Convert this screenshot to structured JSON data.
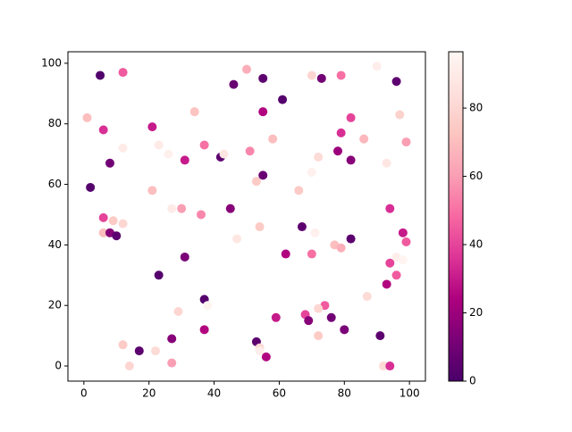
{
  "chart_data": {
    "type": "scatter",
    "colormap": "RdPu_r",
    "x": [
      5,
      12,
      1,
      6,
      8,
      2,
      12,
      21,
      23,
      26,
      31,
      34,
      37,
      42,
      43,
      46,
      50,
      55,
      61,
      55,
      51,
      58,
      53,
      55,
      21,
      27,
      30,
      36,
      45,
      6,
      9,
      12,
      6,
      8,
      10,
      23,
      31,
      47,
      54,
      62,
      66,
      67,
      70,
      72,
      70,
      73,
      79,
      90,
      96,
      82,
      79,
      78,
      82,
      86,
      97,
      99,
      93,
      94,
      98,
      99,
      96,
      98,
      94,
      96,
      93,
      82,
      77,
      79,
      71,
      70,
      87,
      74,
      72,
      68,
      69,
      76,
      80,
      72,
      91,
      92,
      94,
      59,
      53,
      54,
      54,
      56,
      37,
      37,
      29,
      27,
      27,
      22,
      17,
      12,
      14,
      38
    ],
    "y": [
      96,
      97,
      82,
      78,
      67,
      59,
      72,
      79,
      73,
      70,
      68,
      84,
      73,
      69,
      70,
      93,
      98,
      95,
      88,
      84,
      71,
      75,
      61,
      63,
      58,
      52,
      52,
      50,
      52,
      49,
      48,
      47,
      44,
      44,
      43,
      30,
      36,
      42,
      46,
      37,
      58,
      46,
      64,
      69,
      96,
      95,
      96,
      99,
      94,
      82,
      77,
      71,
      68,
      75,
      83,
      74,
      67,
      52,
      44,
      41,
      36,
      35,
      34,
      30,
      27,
      42,
      40,
      39,
      44,
      37,
      23,
      20,
      19,
      17,
      15,
      16,
      12,
      10,
      10,
      0,
      0,
      16,
      8,
      6,
      5,
      3,
      22,
      12,
      18,
      9,
      1,
      5,
      5,
      7,
      0,
      20
    ],
    "c": [
      2,
      45,
      70,
      35,
      10,
      3,
      90,
      30,
      90,
      93,
      30,
      72,
      50,
      5,
      88,
      8,
      65,
      5,
      3,
      25,
      55,
      70,
      75,
      8,
      70,
      90,
      60,
      55,
      15,
      40,
      75,
      80,
      70,
      15,
      5,
      3,
      12,
      88,
      75,
      25,
      75,
      5,
      93,
      82,
      80,
      10,
      50,
      92,
      5,
      40,
      35,
      20,
      15,
      68,
      78,
      60,
      88,
      35,
      30,
      45,
      92,
      95,
      40,
      45,
      25,
      5,
      70,
      65,
      93,
      50,
      82,
      45,
      80,
      40,
      15,
      10,
      12,
      75,
      5,
      82,
      35,
      30,
      5,
      80,
      92,
      25,
      3,
      25,
      80,
      15,
      60,
      82,
      5,
      75,
      80,
      95
    ],
    "xlim": [
      -4.9,
      104.9
    ],
    "ylim": [
      -5,
      103.8
    ],
    "xticks": [
      0,
      20,
      40,
      60,
      80,
      100
    ],
    "yticks": [
      0,
      20,
      40,
      60,
      80,
      100
    ],
    "clim": [
      0,
      96.5
    ],
    "cticks": [
      0,
      20,
      40,
      60,
      80
    ]
  }
}
